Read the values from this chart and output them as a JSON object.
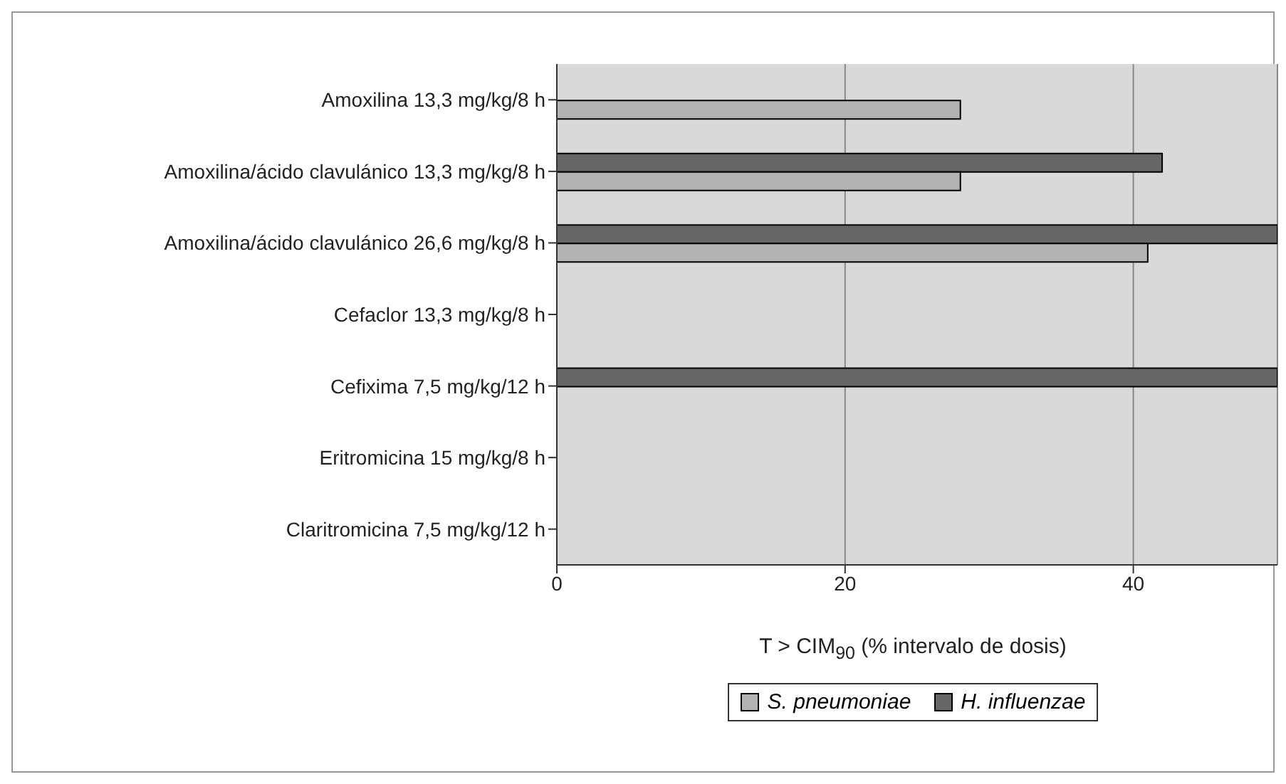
{
  "chart_data": {
    "type": "bar",
    "orientation": "horizontal",
    "categories": [
      "Amoxilina 13,3 mg/kg/8 h",
      "Amoxilina/ácido clavulánico 13,3 mg/kg/8 h",
      "Amoxilina/ácido clavulánico 26,6 mg/kg/8 h",
      "Cefaclor 13,3 mg/kg/8 h",
      "Cefixima 7,5 mg/kg/12 h",
      "Eritromicina 15 mg/kg/8 h",
      "Claritromicina 7,5 mg/kg/12 h"
    ],
    "series": [
      {
        "name": "S. pneumoniae",
        "color": "#b2b2b2",
        "values": [
          28,
          28,
          41,
          0,
          0,
          0,
          0
        ]
      },
      {
        "name": "H. influenzae",
        "color": "#666666",
        "values": [
          0,
          42,
          50,
          0,
          50,
          0,
          0
        ]
      }
    ],
    "xlim": [
      0,
      50
    ],
    "xticks": [
      0,
      20,
      40
    ],
    "xlabel": "T > CIM$_{90}$ (% intervalo de dosis)",
    "grid": "x",
    "legend": "bottom"
  }
}
